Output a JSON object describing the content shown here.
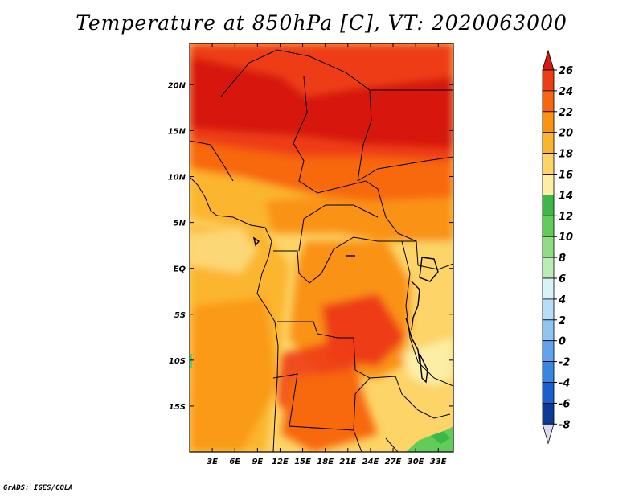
{
  "title": "Temperature at 850hPa [C], VT: 2020063000",
  "credit": "GrADS: IGES/COLA",
  "map": {
    "lat_labels": [
      "20N",
      "15N",
      "10N",
      "5N",
      "EQ",
      "5S",
      "10S",
      "15S"
    ],
    "lon_labels": [
      "3E",
      "6E",
      "9E",
      "12E",
      "15E",
      "18E",
      "21E",
      "24E",
      "27E",
      "30E",
      "33E"
    ],
    "extent": {
      "lon_min": 0,
      "lon_max": 35,
      "lat_min": -20,
      "lat_max": 24.5
    },
    "ocean_color": "#fde68c"
  },
  "colorbar": {
    "levels": [
      "26",
      "24",
      "22",
      "20",
      "18",
      "16",
      "14",
      "12",
      "10",
      "8",
      "6",
      "4",
      "2",
      "0",
      "-2",
      "-4",
      "-6",
      "-8"
    ],
    "colors": [
      "#d7190f",
      "#ee3d14",
      "#f8670f",
      "#fa9212",
      "#fbb52d",
      "#fcd467",
      "#fdeea5",
      "#3cb84a",
      "#61cc59",
      "#8fdc84",
      "#bbebb6",
      "#d9f2f6",
      "#b7ddf7",
      "#8ec5f2",
      "#5fa4ec",
      "#3786e3",
      "#1a5fd0",
      "#0c3a99",
      "#08106e"
    ],
    "under_color": "#ddd8f4"
  }
}
